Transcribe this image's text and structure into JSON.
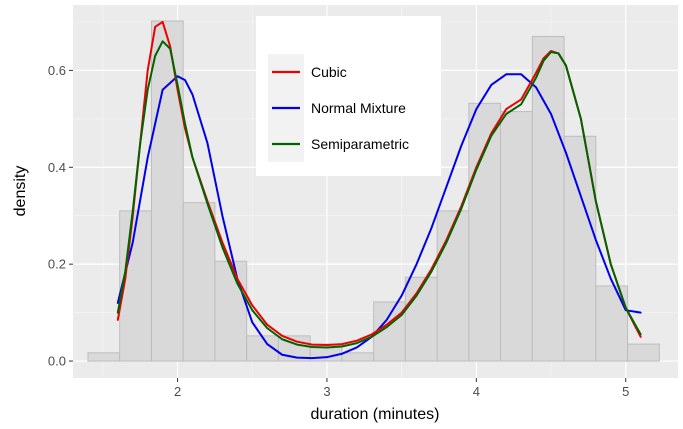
{
  "chart_data": {
    "type": "histogram",
    "xlabel": "duration (minutes)",
    "ylabel": "density",
    "xlim": [
      1.3,
      5.35
    ],
    "ylim": [
      -0.035,
      0.735
    ],
    "x_ticks": [
      2,
      3,
      4,
      5
    ],
    "y_ticks": [
      0.0,
      0.2,
      0.4,
      0.6
    ],
    "x_tick_labels": [
      "2",
      "3",
      "4",
      "5"
    ],
    "y_tick_labels": [
      "0.0",
      "0.2",
      "0.4",
      "0.6"
    ],
    "grid": true,
    "colors": {
      "panel": "#ebebeb",
      "grid_major": "#ffffff",
      "grid_minor": "#f5f5f5",
      "bar_fill": "#d9d9d9",
      "bar_stroke": "#bdbdbd"
    },
    "histogram": {
      "bin_edges": [
        1.4,
        1.6125,
        1.825,
        2.0375,
        2.25,
        2.4625,
        2.675,
        2.8875,
        3.1,
        3.3125,
        3.525,
        3.7375,
        3.95,
        4.1625,
        4.375,
        4.5875,
        4.8,
        5.0125,
        5.225
      ],
      "densities": [
        0.017,
        0.31,
        0.702,
        0.327,
        0.206,
        0.052,
        0.052,
        0.035,
        0.017,
        0.122,
        0.173,
        0.31,
        0.532,
        0.515,
        0.67,
        0.464,
        0.155,
        0.035
      ]
    },
    "legend": {
      "position": "top-center",
      "entries": [
        {
          "name": "Cubic",
          "color": "#ee0000"
        },
        {
          "name": "Normal Mixture",
          "color": "#0000ee"
        },
        {
          "name": "Semiparametric",
          "color": "#006400"
        }
      ]
    },
    "series": [
      {
        "name": "Normal Mixture",
        "color": "#0000ee",
        "x": [
          1.6,
          1.7,
          1.8,
          1.9,
          2.0,
          2.05,
          2.1,
          2.2,
          2.3,
          2.4,
          2.5,
          2.6,
          2.7,
          2.8,
          2.9,
          3.0,
          3.1,
          3.2,
          3.3,
          3.4,
          3.5,
          3.6,
          3.7,
          3.8,
          3.9,
          4.0,
          4.1,
          4.2,
          4.3,
          4.4,
          4.5,
          4.6,
          4.7,
          4.8,
          4.9,
          5.0,
          5.1
        ],
        "y": [
          0.12,
          0.245,
          0.42,
          0.56,
          0.588,
          0.58,
          0.55,
          0.45,
          0.3,
          0.17,
          0.08,
          0.035,
          0.013,
          0.007,
          0.006,
          0.008,
          0.015,
          0.028,
          0.05,
          0.085,
          0.135,
          0.2,
          0.275,
          0.36,
          0.445,
          0.52,
          0.57,
          0.592,
          0.592,
          0.565,
          0.51,
          0.43,
          0.34,
          0.25,
          0.17,
          0.105,
          0.1
        ]
      },
      {
        "name": "Cubic",
        "color": "#ee0000",
        "x": [
          1.6,
          1.65,
          1.7,
          1.75,
          1.8,
          1.85,
          1.9,
          1.95,
          2.0,
          2.05,
          2.1,
          2.2,
          2.3,
          2.4,
          2.5,
          2.6,
          2.7,
          2.8,
          2.9,
          3.0,
          3.1,
          3.2,
          3.3,
          3.4,
          3.5,
          3.6,
          3.7,
          3.8,
          3.9,
          4.0,
          4.1,
          4.2,
          4.3,
          4.4,
          4.45,
          4.5,
          4.55,
          4.6,
          4.7,
          4.8,
          4.9,
          5.0,
          5.1
        ],
        "y": [
          0.085,
          0.17,
          0.3,
          0.45,
          0.6,
          0.69,
          0.7,
          0.65,
          0.56,
          0.48,
          0.42,
          0.33,
          0.245,
          0.17,
          0.115,
          0.075,
          0.052,
          0.04,
          0.034,
          0.033,
          0.035,
          0.042,
          0.055,
          0.075,
          0.1,
          0.14,
          0.19,
          0.25,
          0.32,
          0.4,
          0.47,
          0.52,
          0.54,
          0.595,
          0.625,
          0.64,
          0.635,
          0.61,
          0.5,
          0.33,
          0.2,
          0.11,
          0.05
        ]
      },
      {
        "name": "Semiparametric",
        "color": "#006400",
        "x": [
          1.6,
          1.65,
          1.7,
          1.75,
          1.8,
          1.85,
          1.9,
          1.95,
          2.0,
          2.05,
          2.1,
          2.2,
          2.3,
          2.4,
          2.5,
          2.6,
          2.7,
          2.8,
          2.9,
          3.0,
          3.1,
          3.2,
          3.3,
          3.4,
          3.5,
          3.6,
          3.7,
          3.8,
          3.9,
          4.0,
          4.1,
          4.2,
          4.3,
          4.4,
          4.45,
          4.5,
          4.55,
          4.6,
          4.7,
          4.8,
          4.9,
          5.0,
          5.1
        ],
        "y": [
          0.1,
          0.185,
          0.31,
          0.45,
          0.56,
          0.63,
          0.66,
          0.645,
          0.57,
          0.49,
          0.42,
          0.325,
          0.235,
          0.16,
          0.105,
          0.068,
          0.045,
          0.034,
          0.029,
          0.028,
          0.03,
          0.037,
          0.05,
          0.07,
          0.095,
          0.135,
          0.185,
          0.245,
          0.315,
          0.395,
          0.465,
          0.51,
          0.53,
          0.585,
          0.62,
          0.638,
          0.635,
          0.61,
          0.5,
          0.33,
          0.2,
          0.11,
          0.055
        ]
      }
    ]
  }
}
